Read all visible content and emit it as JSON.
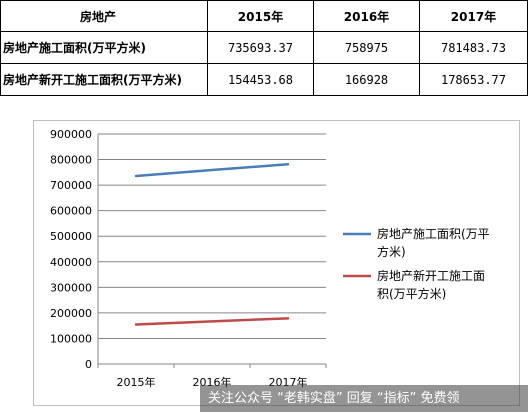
{
  "table": {
    "header": [
      "房地产",
      "2015年",
      "2016年",
      "2017年"
    ],
    "rows": [
      {
        "name": "房地产施工面积(万平方米)",
        "values": [
          "735693.37",
          "758975",
          "781483.73"
        ]
      },
      {
        "name": "房地产新开工施工面积(万平方米)",
        "values": [
          "154453.68",
          "166928",
          "178653.77"
        ]
      }
    ]
  },
  "chart_data": {
    "type": "line",
    "categories": [
      "2015年",
      "2016年",
      "2017年"
    ],
    "series": [
      {
        "name": "房地产施工面积(万平方米)",
        "legend_lines": [
          "房地产施工面积(万平",
          "方米)"
        ],
        "values": [
          735693.37,
          758975,
          781483.73
        ],
        "color": "#4a7ebb"
      },
      {
        "name": "房地产新开工施工面积(万平方米)",
        "legend_lines": [
          "房地产新开工施工面",
          "积(万平方米)"
        ],
        "values": [
          154453.68,
          166928,
          178653.77
        ],
        "color": "#be4b48"
      }
    ],
    "ylim": [
      0,
      900000
    ],
    "yticks": [
      "0",
      "100000",
      "200000",
      "300000",
      "400000",
      "500000",
      "600000",
      "700000",
      "800000",
      "900000"
    ],
    "grid": true,
    "legend": "right"
  },
  "watermark": "关注公众号 “老韩实盘” 回复 “指标” 免费领"
}
